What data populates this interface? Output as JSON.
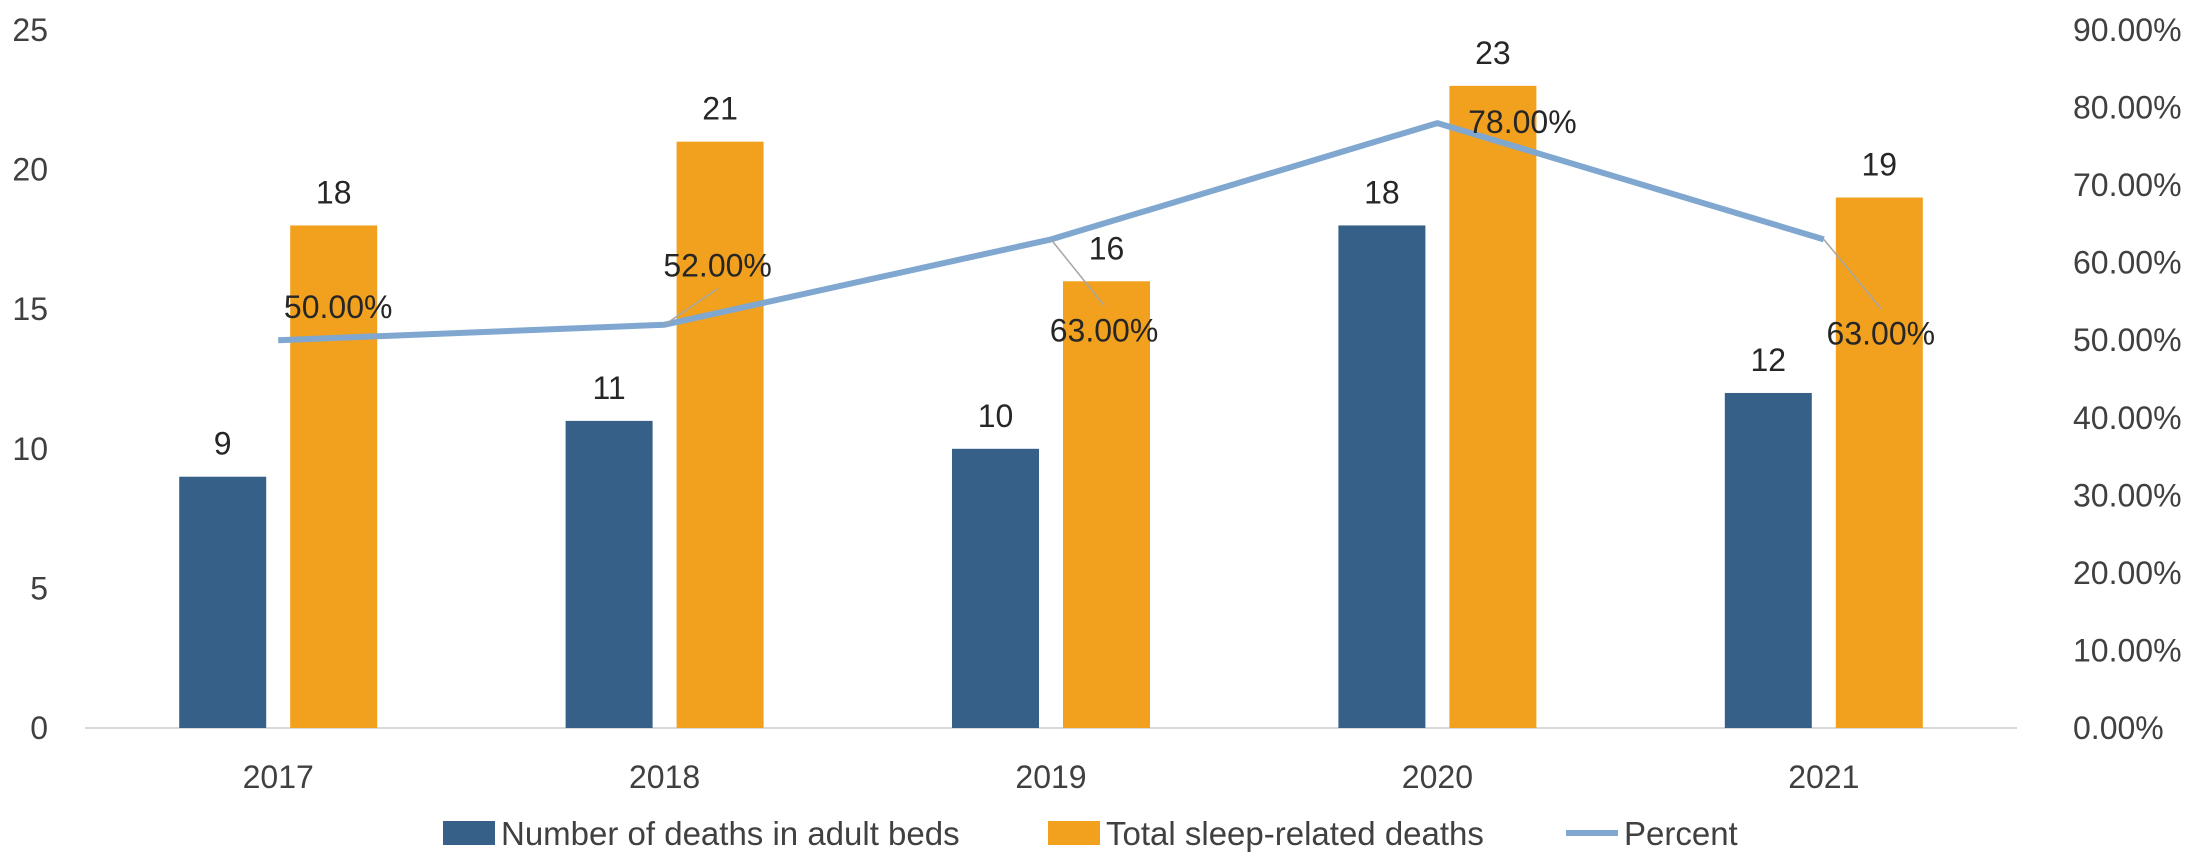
{
  "chart_data": {
    "type": "bar",
    "categories": [
      "2017",
      "2018",
      "2019",
      "2020",
      "2021"
    ],
    "series": [
      {
        "name": "Number of deaths in adult beds",
        "kind": "bar",
        "axis": "left",
        "color": "#376089",
        "values": [
          9,
          11,
          10,
          18,
          12
        ]
      },
      {
        "name": "Total sleep-related deaths",
        "kind": "bar",
        "axis": "left",
        "color": "#F2A11F",
        "values": [
          18,
          21,
          16,
          23,
          19
        ]
      },
      {
        "name": "Percent",
        "kind": "line",
        "axis": "right",
        "color": "#7FA7CF",
        "values": [
          50,
          52,
          63,
          78,
          63
        ]
      }
    ],
    "bar_labels": [
      [
        "9",
        "11",
        "10",
        "18",
        "12"
      ],
      [
        "18",
        "21",
        "16",
        "23",
        "19"
      ]
    ],
    "line_labels": [
      "50.00%",
      "52.00%",
      "63.00%",
      "78.00%",
      "63.00%"
    ],
    "y_left": {
      "min": 0,
      "max": 25,
      "ticks": [
        0,
        5,
        10,
        15,
        20,
        25
      ],
      "tick_labels": [
        "0",
        "5",
        "10",
        "15",
        "20",
        "25"
      ]
    },
    "y_right": {
      "min": 0,
      "max": 90,
      "ticks": [
        0,
        10,
        20,
        30,
        40,
        50,
        60,
        70,
        80,
        90
      ],
      "tick_labels": [
        "0.00%",
        "10.00%",
        "20.00%",
        "30.00%",
        "40.00%",
        "50.00%",
        "60.00%",
        "70.00%",
        "80.00%",
        "90.00%"
      ]
    },
    "legend_position": "bottom",
    "grid": false
  },
  "legend": {
    "items": [
      {
        "label": "Number of deaths in adult beds",
        "type": "box",
        "color": "#376089"
      },
      {
        "label": "Total sleep-related deaths",
        "type": "box",
        "color": "#F2A11F"
      },
      {
        "label": "Percent",
        "type": "line",
        "color": "#7FA7CF"
      }
    ]
  },
  "colors": {
    "axis": "#D9D9D9",
    "text": "#404040",
    "label": "#262626",
    "leader": "#A6A6A6"
  }
}
